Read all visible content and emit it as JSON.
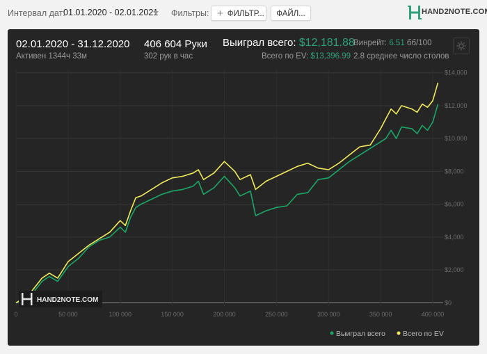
{
  "toolbar": {
    "date_label": "Интервал дат:",
    "date_value": "01.01.2020 - 02.01.2021",
    "filters_label": "Фильтры:",
    "filter_button": "ФИЛЬТР...",
    "files_button": "ФАЙЛ...",
    "logo_text": "HAND2NOTE.COM"
  },
  "stats": {
    "period": "02.01.2020 - 31.12.2020",
    "active": "Активен 1344ч 33м",
    "hands": "406 604 Руки",
    "hands_per_hour": "302 рук в час",
    "won_label": "Выиграл всего:",
    "won_value": "$12,181.88",
    "ev_label": "Всего по EV:",
    "ev_value": "$13,396.99",
    "winrate_label": "Винрейт:",
    "winrate_value": "6.51",
    "winrate_unit": "бб/100",
    "tables": "2.8 среднее число столов"
  },
  "colors": {
    "won": "#1aa86a",
    "ev": "#f0ea5c",
    "panel": "#252525",
    "accent": "#2ea07a"
  },
  "chart_data": {
    "type": "line",
    "x_ticks": [
      "0",
      "50 000",
      "100 000",
      "150 000",
      "200 000",
      "250 000",
      "300 000",
      "350 000",
      "400 000"
    ],
    "y_ticks": [
      "$0",
      "$2,000",
      "$4,000",
      "$6,000",
      "$8,000",
      "$10,000",
      "$12,000",
      "$14,000"
    ],
    "xlim": [
      0,
      410000
    ],
    "ylim": [
      -200,
      14200
    ],
    "grid": true,
    "legend_position": "bottom-right",
    "watermark": "HAND2NOTE.COM",
    "series": [
      {
        "name": "Выиграл всего",
        "color": "#1aa86a",
        "x": [
          0,
          8000,
          15000,
          25000,
          32000,
          40000,
          50000,
          60000,
          70000,
          80000,
          90000,
          100000,
          105000,
          110000,
          115000,
          120000,
          130000,
          140000,
          150000,
          160000,
          170000,
          175000,
          180000,
          190000,
          200000,
          210000,
          215000,
          225000,
          230000,
          240000,
          250000,
          260000,
          270000,
          280000,
          290000,
          300000,
          310000,
          320000,
          330000,
          340000,
          350000,
          355000,
          360000,
          365000,
          370000,
          380000,
          385000,
          390000,
          395000,
          400000,
          405000
        ],
        "y": [
          0,
          200,
          500,
          1300,
          1600,
          1300,
          2200,
          2700,
          3400,
          3800,
          4000,
          4600,
          4300,
          5200,
          5800,
          6000,
          6300,
          6600,
          6800,
          6900,
          7100,
          7400,
          6600,
          7000,
          7700,
          7000,
          6500,
          6800,
          5300,
          5600,
          5800,
          5900,
          6600,
          6700,
          7500,
          7600,
          8100,
          8600,
          9000,
          9400,
          9800,
          10000,
          10500,
          10000,
          10700,
          10600,
          10300,
          10800,
          10500,
          11000,
          12100
        ]
      },
      {
        "name": "Всего по EV",
        "color": "#f0ea5c",
        "x": [
          0,
          8000,
          15000,
          25000,
          32000,
          40000,
          50000,
          60000,
          70000,
          80000,
          90000,
          100000,
          105000,
          110000,
          115000,
          120000,
          130000,
          140000,
          150000,
          160000,
          170000,
          175000,
          180000,
          190000,
          200000,
          210000,
          215000,
          225000,
          230000,
          240000,
          250000,
          260000,
          270000,
          280000,
          290000,
          300000,
          310000,
          320000,
          330000,
          340000,
          350000,
          355000,
          360000,
          365000,
          370000,
          380000,
          385000,
          390000,
          395000,
          400000,
          405000
        ],
        "y": [
          0,
          300,
          700,
          1500,
          1800,
          1500,
          2500,
          3000,
          3500,
          3900,
          4300,
          5000,
          4700,
          5600,
          6400,
          6500,
          6900,
          7300,
          7600,
          7700,
          7900,
          8100,
          7500,
          7900,
          8600,
          8000,
          7500,
          7800,
          6900,
          7400,
          7700,
          8000,
          8300,
          8500,
          8200,
          8100,
          8500,
          9000,
          9500,
          9600,
          10600,
          11200,
          11800,
          11500,
          12000,
          11800,
          11600,
          12100,
          11900,
          12300,
          13400
        ]
      }
    ]
  }
}
